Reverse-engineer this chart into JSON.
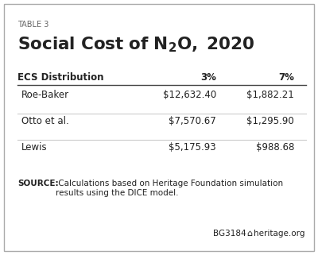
{
  "table_label": "TABLE 3",
  "col_headers": [
    "ECS Distribution",
    "3%",
    "7%"
  ],
  "rows": [
    [
      "Roe-Baker",
      "$12,632.40",
      "$1,882.21"
    ],
    [
      "Otto et al.",
      "$7,570.67",
      "$1,295.90"
    ],
    [
      "Lewis",
      "$5,175.93",
      "$988.68"
    ]
  ],
  "source_bold": "SOURCE:",
  "source_text": " Calculations based on Heritage Foundation simulation\nresults using the DICE model.",
  "footer_left": "BG3184",
  "footer_icon": "⌂",
  "footer_right": "heritage.org",
  "bg_color": "#ffffff",
  "border_color": "#aaaaaa",
  "row_line_color": "#cccccc",
  "header_line_color": "#444444",
  "text_color": "#222222",
  "label_color": "#666666"
}
